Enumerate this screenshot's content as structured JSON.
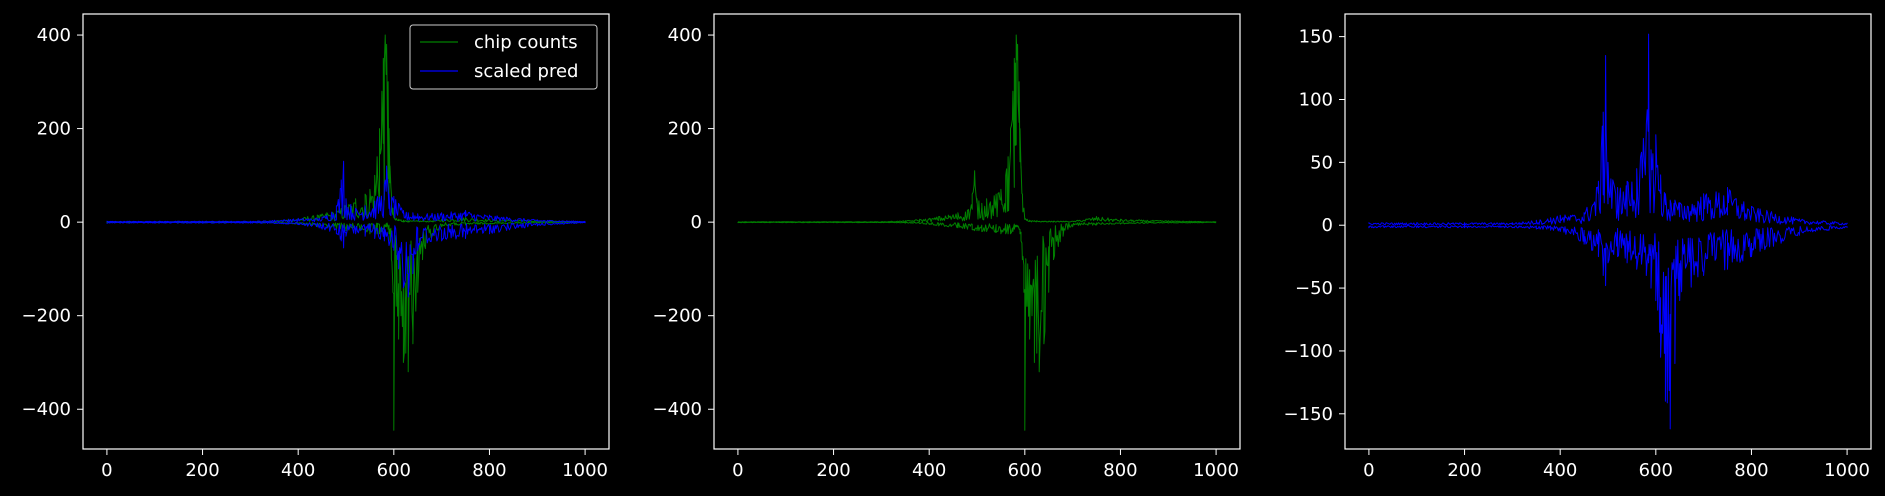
{
  "colors": {
    "background": "#000000",
    "axes": "#ffffff",
    "green": "#008000",
    "blue": "#0000ff"
  },
  "chart_data": [
    {
      "type": "line",
      "title": "",
      "xlabel": "",
      "ylabel": "",
      "xlim": [
        -50,
        1050
      ],
      "ylim": [
        -485,
        445
      ],
      "xticks": [
        0,
        200,
        400,
        600,
        800,
        1000
      ],
      "yticks": [
        -400,
        -200,
        0,
        200,
        400
      ],
      "xtick_labels": [
        "0",
        "200",
        "400",
        "600",
        "800",
        "1000"
      ],
      "ytick_labels": [
        "−400",
        "−200",
        "0",
        "200",
        "400"
      ],
      "legend": {
        "placement": "top-right",
        "entries": [
          "chip counts",
          "scaled pred"
        ]
      },
      "series": [
        {
          "name": "chip counts",
          "color": "#008000",
          "x": [
            0,
            100,
            200,
            300,
            350,
            380,
            400,
            420,
            440,
            460,
            480,
            500,
            520,
            540,
            550,
            560,
            565,
            570,
            575,
            578,
            580,
            582,
            585,
            588,
            590,
            592,
            595,
            598,
            600,
            605,
            610,
            615,
            620,
            625,
            630,
            640,
            650,
            660,
            680,
            700,
            750,
            800,
            900,
            1000
          ],
          "upper": [
            1,
            1,
            1,
            1,
            3,
            6,
            8,
            12,
            15,
            20,
            25,
            40,
            50,
            60,
            70,
            100,
            140,
            200,
            280,
            350,
            340,
            400,
            380,
            300,
            200,
            120,
            60,
            30,
            10,
            8,
            6,
            5,
            4,
            3,
            3,
            3,
            3,
            3,
            3,
            6,
            10,
            6,
            3,
            1
          ],
          "lower": [
            -1,
            -1,
            -1,
            -1,
            -2,
            -3,
            -5,
            -8,
            -10,
            -12,
            -15,
            -18,
            -20,
            -22,
            -25,
            -25,
            -25,
            -25,
            -20,
            -15,
            -10,
            -10,
            -10,
            -15,
            -25,
            -40,
            -80,
            -150,
            -445,
            -180,
            -250,
            -200,
            -300,
            -280,
            -320,
            -260,
            -150,
            -80,
            -30,
            -10,
            -6,
            -4,
            -2,
            -1
          ]
        },
        {
          "name": "scaled pred",
          "color": "#0000ff",
          "x": [
            0,
            100,
            200,
            300,
            350,
            380,
            400,
            450,
            480,
            490,
            495,
            500,
            520,
            540,
            560,
            580,
            585,
            590,
            600,
            610,
            620,
            630,
            640,
            650,
            700,
            750,
            800,
            900,
            1000
          ],
          "upper": [
            2,
            2,
            2,
            2,
            4,
            6,
            8,
            10,
            35,
            90,
            130,
            50,
            30,
            35,
            45,
            80,
            120,
            60,
            55,
            40,
            25,
            20,
            20,
            18,
            20,
            25,
            15,
            5,
            2
          ],
          "lower": [
            -2,
            -2,
            -2,
            -2,
            -3,
            -4,
            -5,
            -15,
            -25,
            -40,
            -55,
            -30,
            -25,
            -30,
            -35,
            -40,
            -30,
            -50,
            -60,
            -100,
            -140,
            -160,
            -110,
            -60,
            -40,
            -35,
            -25,
            -8,
            -2
          ]
        }
      ]
    },
    {
      "type": "line",
      "title": "",
      "xlabel": "",
      "ylabel": "",
      "xlim": [
        -50,
        1050
      ],
      "ylim": [
        -485,
        445
      ],
      "xticks": [
        0,
        200,
        400,
        600,
        800,
        1000
      ],
      "yticks": [
        -400,
        -200,
        0,
        200,
        400
      ],
      "xtick_labels": [
        "0",
        "200",
        "400",
        "600",
        "800",
        "1000"
      ],
      "ytick_labels": [
        "−400",
        "−200",
        "0",
        "200",
        "400"
      ],
      "series": [
        {
          "color": "#008000",
          "x": [
            0,
            100,
            200,
            300,
            350,
            380,
            400,
            420,
            440,
            460,
            480,
            490,
            495,
            500,
            510,
            520,
            540,
            550,
            560,
            565,
            570,
            575,
            578,
            580,
            582,
            585,
            588,
            590,
            592,
            595,
            598,
            600,
            605,
            610,
            615,
            620,
            625,
            630,
            640,
            650,
            660,
            680,
            700,
            750,
            800,
            900,
            1000
          ],
          "upper": [
            1,
            1,
            1,
            1,
            3,
            6,
            8,
            12,
            15,
            20,
            25,
            60,
            110,
            50,
            40,
            50,
            60,
            70,
            100,
            140,
            200,
            280,
            350,
            340,
            400,
            380,
            300,
            200,
            120,
            60,
            30,
            8,
            6,
            4,
            3,
            3,
            3,
            2,
            2,
            2,
            2,
            2,
            2,
            12,
            6,
            3,
            1
          ],
          "lower": [
            -1,
            -1,
            -1,
            -1,
            -2,
            -3,
            -5,
            -8,
            -10,
            -12,
            -15,
            -16,
            -18,
            -18,
            -20,
            -20,
            -22,
            -25,
            -25,
            -25,
            -25,
            -20,
            -15,
            -10,
            -10,
            -10,
            -15,
            -25,
            -40,
            -80,
            -150,
            -445,
            -180,
            -250,
            -200,
            -300,
            -280,
            -320,
            -260,
            -150,
            -80,
            -30,
            -10,
            -6,
            -4,
            -2,
            -1
          ]
        }
      ]
    },
    {
      "type": "line",
      "title": "",
      "xlabel": "",
      "ylabel": "",
      "xlim": [
        -50,
        1050
      ],
      "ylim": [
        -178,
        168
      ],
      "xticks": [
        0,
        200,
        400,
        600,
        800,
        1000
      ],
      "yticks": [
        -150,
        -100,
        -50,
        0,
        50,
        100,
        150
      ],
      "xtick_labels": [
        "0",
        "200",
        "400",
        "600",
        "800",
        "1000"
      ],
      "ytick_labels": [
        "−150",
        "−100",
        "−50",
        "0",
        "50",
        "100",
        "150"
      ],
      "series": [
        {
          "color": "#0000ff",
          "x": [
            0,
            100,
            200,
            300,
            350,
            380,
            400,
            450,
            480,
            490,
            495,
            500,
            520,
            540,
            560,
            580,
            585,
            590,
            600,
            610,
            620,
            630,
            640,
            650,
            700,
            750,
            800,
            900,
            1000
          ],
          "upper": [
            2,
            2,
            2,
            2,
            4,
            6,
            8,
            10,
            35,
            90,
            135,
            50,
            30,
            35,
            45,
            80,
            152,
            60,
            72,
            40,
            25,
            20,
            20,
            18,
            25,
            30,
            15,
            5,
            2
          ],
          "lower": [
            -2,
            -2,
            -2,
            -2,
            -3,
            -4,
            -5,
            -15,
            -25,
            -40,
            -48,
            -30,
            -25,
            -30,
            -35,
            -40,
            -30,
            -50,
            -60,
            -105,
            -140,
            -162,
            -110,
            -60,
            -40,
            -35,
            -25,
            -8,
            -2
          ]
        }
      ]
    }
  ]
}
